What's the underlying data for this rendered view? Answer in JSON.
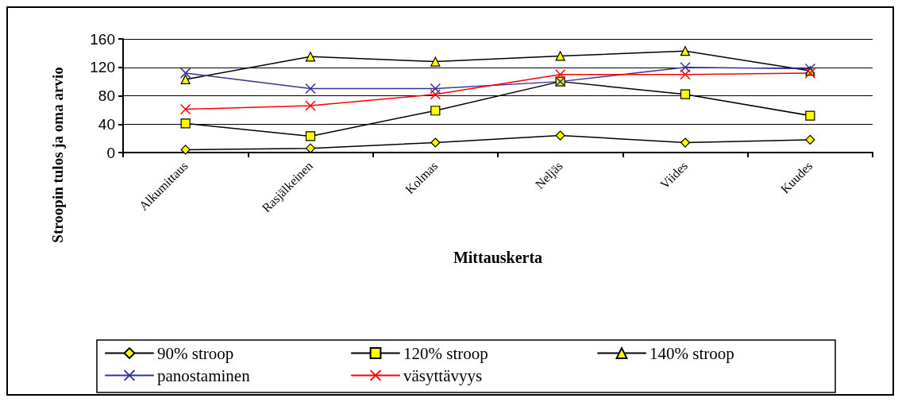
{
  "chart_data": {
    "type": "line",
    "xlabel": "Mittauskerta",
    "ylabel": "Stroopin tulos ja oma arvio",
    "categories": [
      "Alkumittaus",
      "Rasjälkeinen",
      "Kolmas",
      "Neljäs",
      "Viides",
      "Kuudes"
    ],
    "ylim": [
      0,
      160
    ],
    "yticks": [
      0,
      40,
      80,
      120,
      160
    ],
    "grid": "y",
    "legend": "bottom",
    "series": [
      {
        "name": "90% stroop",
        "color": "#000000",
        "marker": "diamond",
        "values": [
          4,
          6,
          14,
          24,
          14,
          18
        ]
      },
      {
        "name": "120% stroop",
        "color": "#000000",
        "marker": "square",
        "values": [
          41,
          23,
          59,
          100,
          82,
          52
        ]
      },
      {
        "name": "140% stroop",
        "color": "#000000",
        "marker": "triangle",
        "values": [
          103,
          135,
          128,
          136,
          143,
          115
        ]
      },
      {
        "name": "panostaminen",
        "color": "#333399",
        "marker": "cross",
        "values": [
          112,
          90,
          90,
          100,
          120,
          118
        ]
      },
      {
        "name": "väsyttävyys",
        "color": "#ff0000",
        "marker": "cross",
        "values": [
          61,
          66,
          82,
          110,
          110,
          112
        ]
      }
    ]
  }
}
